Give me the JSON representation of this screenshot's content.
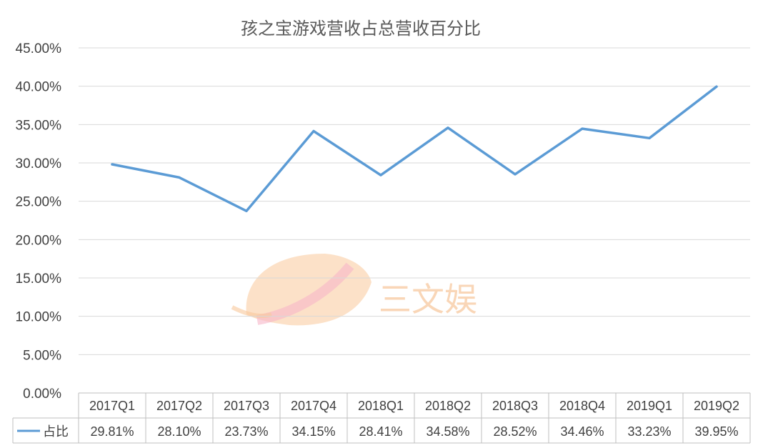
{
  "chart_data": {
    "type": "line",
    "title": "孩之宝游戏营收占总营收百分比",
    "categories": [
      "2017Q1",
      "2017Q2",
      "2017Q3",
      "2017Q4",
      "2018Q1",
      "2018Q2",
      "2018Q3",
      "2018Q4",
      "2019Q1",
      "2019Q2"
    ],
    "series": [
      {
        "name": "占比",
        "values": [
          29.81,
          28.1,
          23.73,
          34.15,
          28.41,
          34.58,
          28.52,
          34.46,
          33.23,
          39.95
        ],
        "labels": [
          "29.81%",
          "28.10%",
          "23.73%",
          "34.15%",
          "28.41%",
          "34.58%",
          "28.52%",
          "34.46%",
          "33.23%",
          "39.95%"
        ],
        "color": "#5b9bd5"
      }
    ],
    "ylim": [
      0,
      45
    ],
    "yticks": [
      "0.00%",
      "5.00%",
      "10.00%",
      "15.00%",
      "20.00%",
      "25.00%",
      "30.00%",
      "35.00%",
      "40.00%",
      "45.00%"
    ],
    "grid": true,
    "legend": "data-table"
  },
  "watermark": {
    "text": "三文娱",
    "colors": [
      "#f9c89b",
      "#f6b6c8"
    ]
  }
}
